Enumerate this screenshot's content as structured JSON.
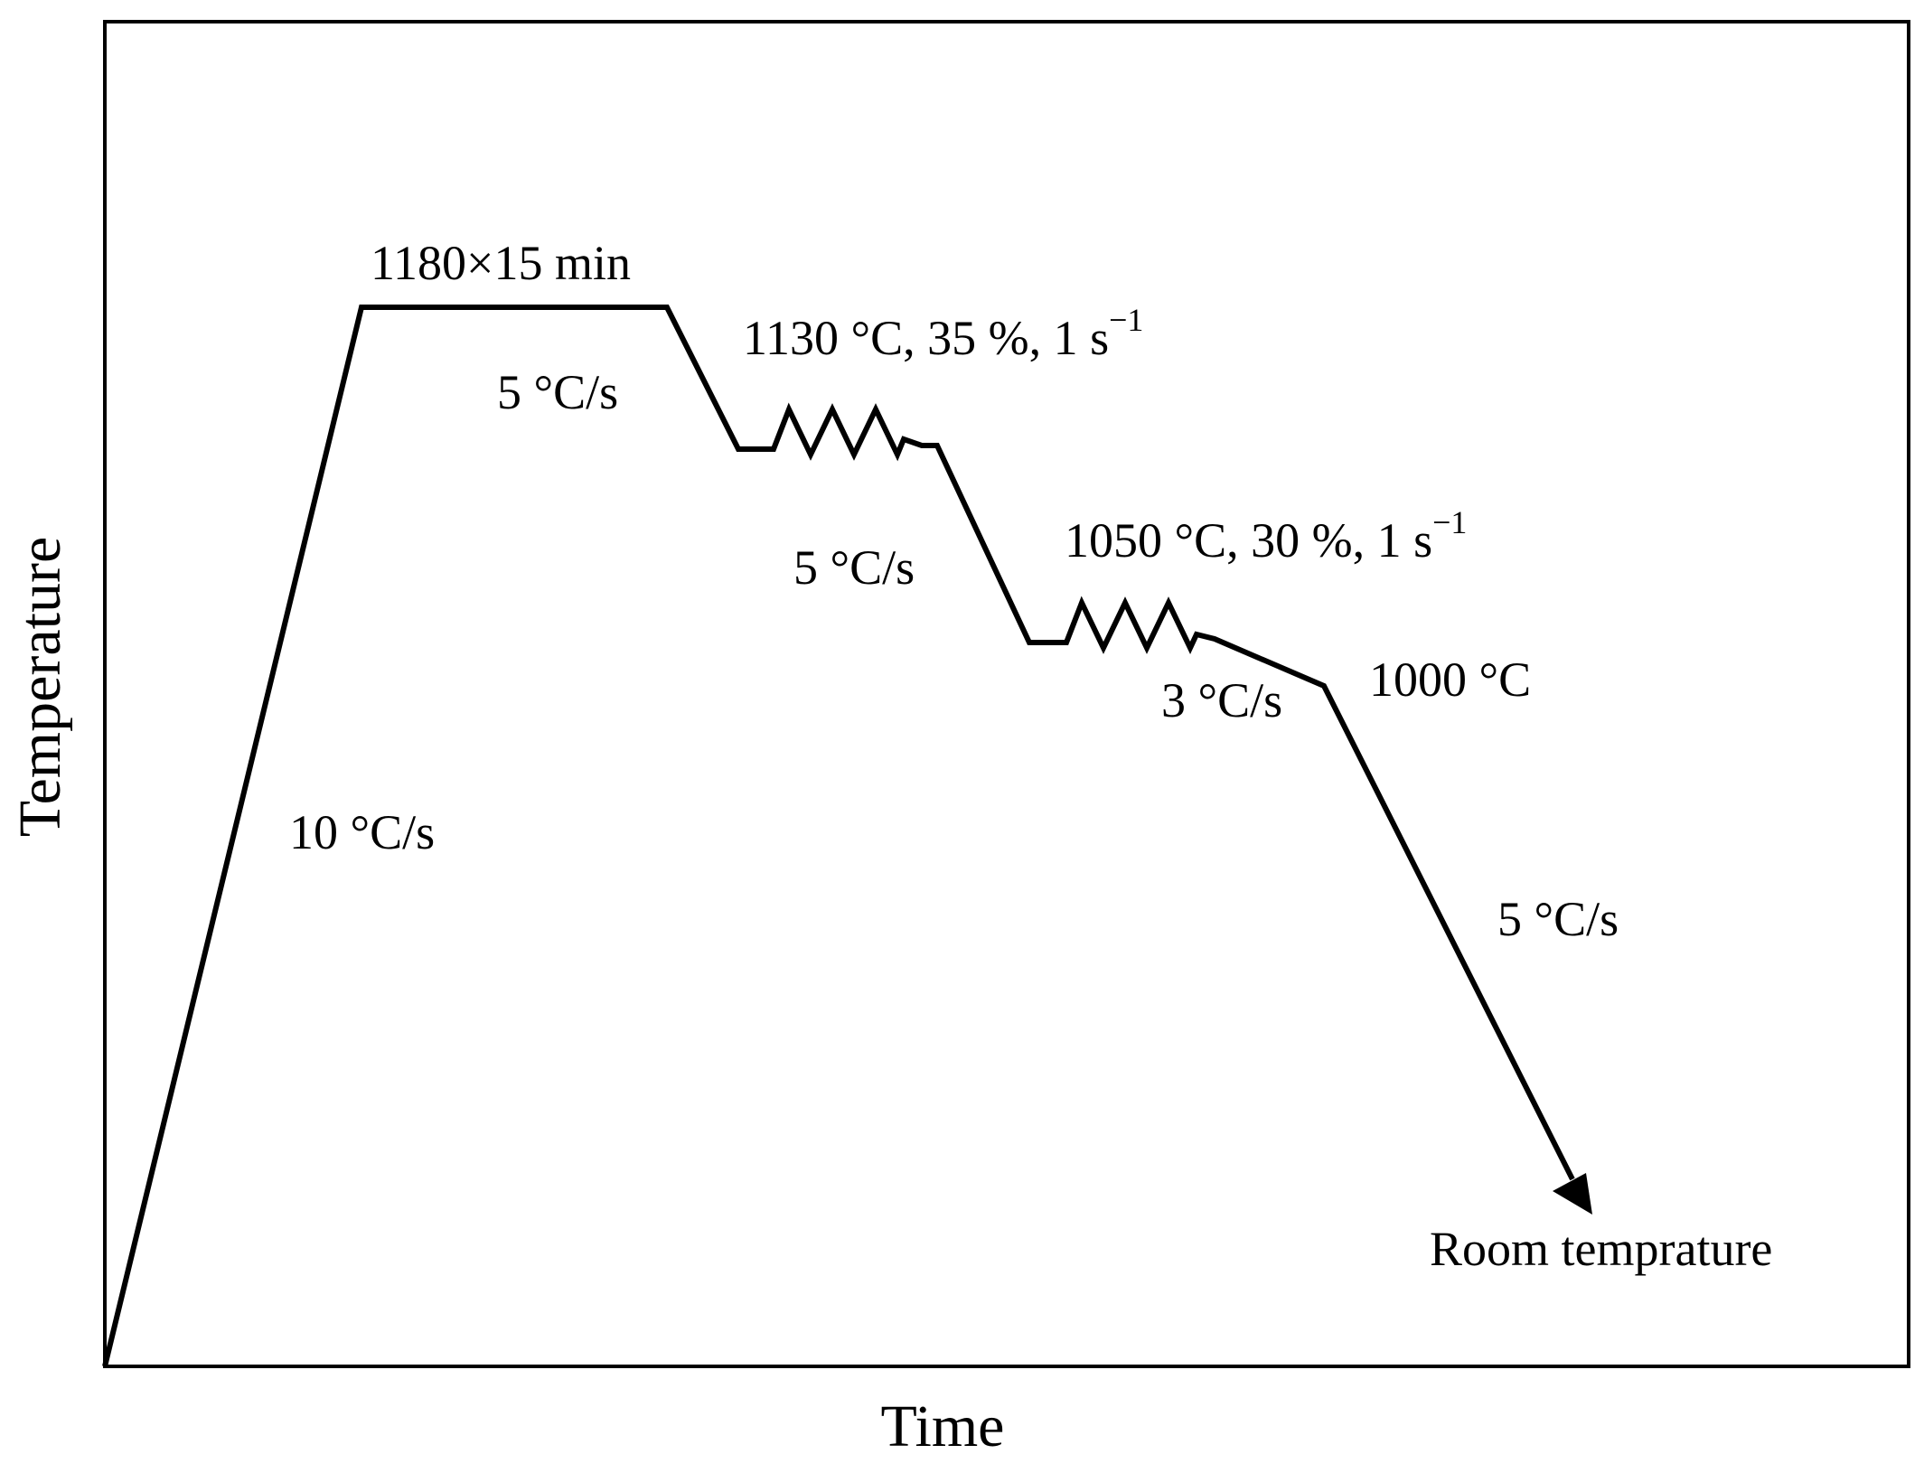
{
  "axes": {
    "x_title": "Time",
    "y_title": "Temperature"
  },
  "annotations": {
    "heating_rate": "10 °C/s",
    "hold": "1180×15 min",
    "cool_1": "5 °C/s",
    "deform_1": "1130 °C, 35 %, 1 s",
    "deform_1_exp": "−1",
    "cool_2": "5 °C/s",
    "deform_2": "1050 °C, 30 %, 1 s",
    "deform_2_exp": "−1",
    "cool_3": "3 °C/s",
    "finish_temp": "1000 °C",
    "cool_final": "5 °C/s",
    "end_label": "Room temprature"
  },
  "colors": {
    "line": "#000000",
    "background": "#ffffff"
  }
}
